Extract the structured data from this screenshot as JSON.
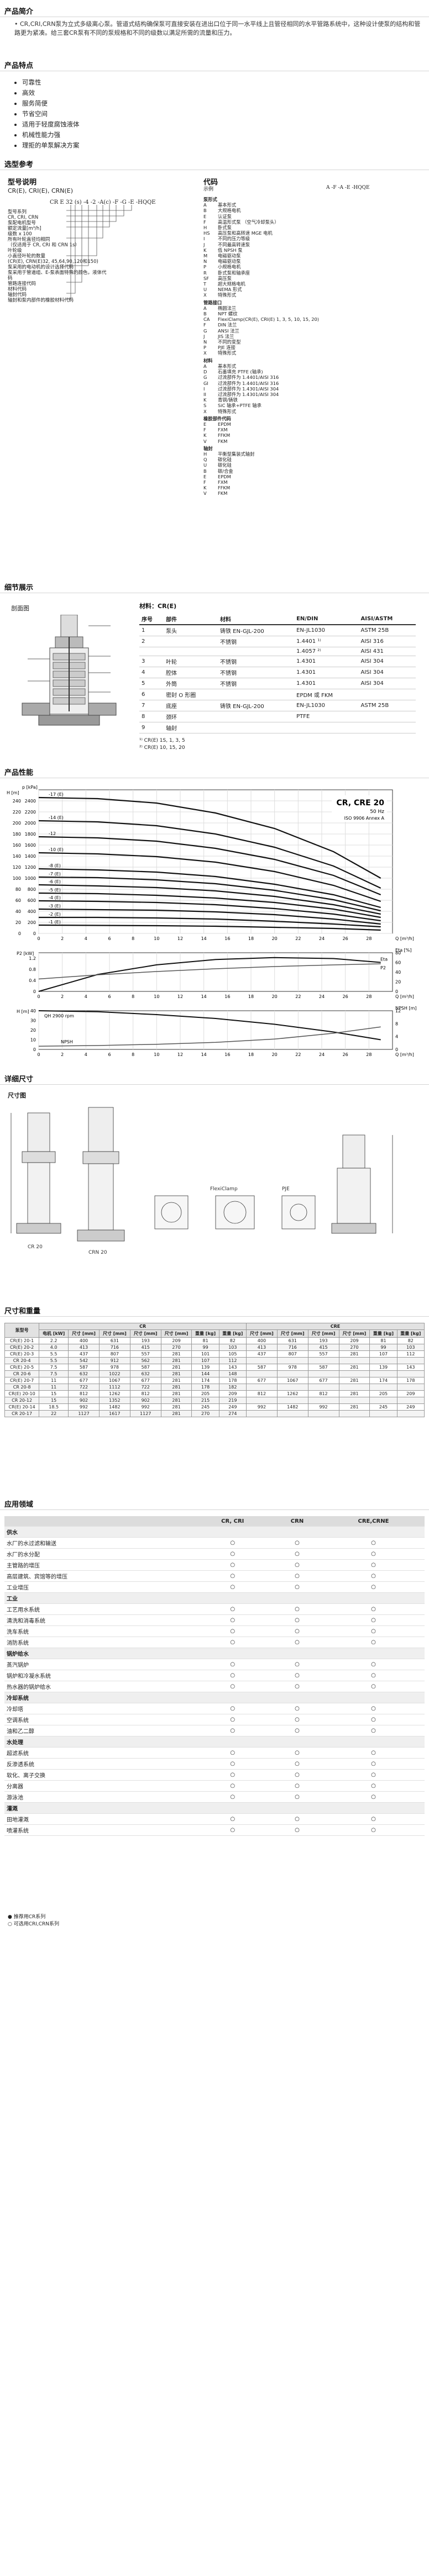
{
  "sections": {
    "product_intro": "产品简介",
    "features": "产品特点",
    "selection": "选型参考",
    "details": "细节展示",
    "performance": "产品性能",
    "dimensions": "详细尺寸",
    "size_label": "尺寸图",
    "size_weight": "尺寸和重量",
    "applications": "应用领域"
  },
  "intro_text": "• CR,CRI,CRN泵为立式多级离心泵。管道式结构确保泵可直接安装在进出口位于同一水平线上且管径相同的水平管路系统中，这种设计使泵的结构和管路更为紧凑。给三套CR泵有不同的泵规格和不同的级数以满足所需的流量和压力。",
  "features": [
    "可靠性",
    "高效",
    "服务简便",
    "节省空间",
    "适用于轻度腐蚀液体",
    "机械性能力强",
    "理拒的单泵解决方案"
  ],
  "model": {
    "heading": "型号说明",
    "sub": "CR(E), CRI(E), CRN(E)",
    "code": "CR E 32 (s) -4 -2 -A(c) -F -G -E -HQQE",
    "left_labels": [
      "型号系列",
      "CR, CRI, CRN",
      "泵配电机型号",
      "额定流量[m³/h]",
      "级数 x 100",
      "所有叶轮直径均相同",
      "（仅适用于 CR, CRI 和 CRN 1s）",
      "叶轮级",
      "小直径叶轮的数量",
      "(CR(E), CRN(E)32, 45,64,90,120和150)",
      "泵采用的电动机的设计选择代码",
      "泵采用于管道组、E-泵表面特殊的颜色，液体代码",
      "管路连接代码",
      "材料代码",
      "轴封代码",
      "轴封和泵内部件的橡胶材料代码"
    ]
  },
  "codes": {
    "heading": "代码",
    "example_label": "示例",
    "example_code": "A -F -A -E -HQQE",
    "groups": [
      {
        "title": "泵形式",
        "rows": [
          [
            "A",
            "基本形式"
          ],
          [
            "B",
            "大规格电机"
          ],
          [
            "E",
            "认证泵"
          ],
          [
            "F",
            "高温形式泵 （空气冷却泵头）"
          ],
          [
            "H",
            "卧式泵"
          ],
          [
            "HS",
            "高压泵和高转速 MGE 电机"
          ],
          [
            "I",
            "不同的压力等级"
          ],
          [
            "J",
            "不同最高转速泵"
          ],
          [
            "K",
            "低 NPSH 泵"
          ],
          [
            "M",
            "电磁驱动泵"
          ],
          [
            "N",
            "电磁驱动泵"
          ],
          [
            "P",
            "小规格电机"
          ],
          [
            "R",
            "卧式泵和轴承座"
          ],
          [
            "SF",
            "高压泵"
          ],
          [
            "T",
            "超大规格电机"
          ],
          [
            "U",
            "NEMA 形式"
          ],
          [
            "X",
            "特殊形式"
          ]
        ]
      },
      {
        "title": "管路接口",
        "rows": [
          [
            "A",
            "椭圆法兰"
          ],
          [
            "B",
            "NPT 螺纹"
          ],
          [
            "CA",
            "FlexiClamp(CR(E), CRI(E) 1, 3, 5, 10, 15, 20)"
          ],
          [
            "F",
            "DIN 法兰"
          ],
          [
            "G",
            "ANSI 法兰"
          ],
          [
            "J",
            "JIS 法兰"
          ],
          [
            "N",
            "不同的变型"
          ],
          [
            "P",
            "PJE 连接"
          ],
          [
            "X",
            "特殊形式"
          ]
        ]
      },
      {
        "title": "材料",
        "rows": [
          [
            "A",
            "基本形式"
          ],
          [
            "D",
            "石墨填充 PTFE (轴承)"
          ],
          [
            "G",
            "过流部件为 1.4401/AISI 316"
          ],
          [
            "GI",
            "过流部件为 1.4401/AISI 316"
          ],
          [
            "I",
            "过流部件为 1.4301/AISI 304"
          ],
          [
            "II",
            "过流部件为 1.4301/AISI 304"
          ],
          [
            "K",
            "青铜/铸铁"
          ],
          [
            "S",
            "SiC 轴承+PTFE 轴承"
          ],
          [
            "X",
            "特殊形式"
          ]
        ]
      },
      {
        "title": "橡胶部件代码",
        "rows": [
          [
            "E",
            "EPDM"
          ],
          [
            "F",
            "FXM"
          ],
          [
            "K",
            "FFKM"
          ],
          [
            "V",
            "FKM"
          ]
        ]
      },
      {
        "title": "轴封",
        "rows": [
          [
            "H",
            "平衡型集装式轴封"
          ],
          [
            "Q",
            "碳化硅"
          ],
          [
            "U",
            "碳化硅"
          ],
          [
            "B",
            "碳/合金"
          ],
          [
            "E",
            "EPDM"
          ],
          [
            "F",
            "FXM"
          ],
          [
            "K",
            "FFKM"
          ],
          [
            "V",
            "FKM"
          ]
        ]
      }
    ]
  },
  "details": {
    "section_label": "剖面图",
    "materials_title": "材料：CR(E)",
    "headers": [
      "序号",
      "部件",
      "材料",
      "EN/DIN",
      "AISI/ASTM"
    ],
    "rows": [
      [
        "1",
        "泵头",
        "铸铁 EN-GJL-200",
        "EN-JL1030",
        "ASTM 25B"
      ],
      [
        "2",
        "",
        "不锈钢",
        "1.4401 ¹⁾",
        "AISI 316"
      ],
      [
        "",
        "",
        "",
        "1.4057 ²⁾",
        "AISI 431"
      ],
      [
        "3",
        "叶轮",
        "不锈钢",
        "1.4301",
        "AISI 304"
      ],
      [
        "4",
        "腔体",
        "不锈钢",
        "1.4301",
        "AISI 304"
      ],
      [
        "5",
        "外筒",
        "不锈钢",
        "1.4301",
        "AISI 304"
      ],
      [
        "6",
        "密封 O 形圈",
        "",
        "EPDM 或 FKM",
        ""
      ],
      [
        "7",
        "底座",
        "铸铁 EN-GJL-200",
        "EN-JL1030",
        "ASTM 25B"
      ],
      [
        "8",
        "颈环",
        "",
        "PTFE",
        ""
      ],
      [
        "9",
        "轴封",
        "",
        "",
        ""
      ]
    ],
    "notes": [
      "¹⁾ CR(E) 1S, 1, 3, 5",
      "²⁾ CR(E) 10, 15, 20"
    ]
  },
  "chart_data": [
    {
      "type": "line",
      "title": "CR, CRE 20",
      "subtitle": "50 Hz",
      "note": "ISO 9906 Annex A",
      "xlabel": "Q [m³/h]",
      "ylabel": "p [kPa]",
      "ylabel2": "H [m]",
      "xlim": [
        0,
        30
      ],
      "ylim": [
        0,
        2600
      ],
      "series": [
        {
          "name": "-17 (E)",
          "values": [
            2460,
            2440,
            2360,
            2180,
            1900,
            1480,
            1000
          ]
        },
        {
          "name": "-14 (E)",
          "values": [
            2040,
            2020,
            1950,
            1800,
            1560,
            1220,
            820
          ]
        },
        {
          "name": "-12",
          "values": [
            1750,
            1730,
            1670,
            1540,
            1340,
            1050,
            700
          ]
        },
        {
          "name": "-10 (E)",
          "values": [
            1460,
            1440,
            1390,
            1290,
            1120,
            870,
            580
          ]
        },
        {
          "name": "-8 (E)",
          "values": [
            1170,
            1150,
            1110,
            1030,
            890,
            700,
            470
          ]
        },
        {
          "name": "-7 (E)",
          "values": [
            1020,
            1010,
            970,
            900,
            780,
            610,
            410
          ]
        },
        {
          "name": "-6 (E)",
          "values": [
            880,
            860,
            830,
            770,
            670,
            520,
            350
          ]
        },
        {
          "name": "-5 (E)",
          "values": [
            730,
            720,
            690,
            640,
            560,
            440,
            290
          ]
        },
        {
          "name": "-4 (E)",
          "values": [
            590,
            580,
            560,
            520,
            450,
            350,
            230
          ]
        },
        {
          "name": "-3 (E)",
          "values": [
            440,
            430,
            420,
            390,
            340,
            260,
            170
          ]
        },
        {
          "name": "-2 (E)",
          "values": [
            290,
            290,
            280,
            260,
            220,
            170,
            120
          ]
        },
        {
          "name": "-1 (E)",
          "values": [
            150,
            145,
            140,
            130,
            110,
            90,
            60
          ]
        }
      ],
      "x": [
        0,
        5,
        10,
        15,
        20,
        25,
        29
      ],
      "x_ticks": [
        0,
        2,
        4,
        6,
        8,
        10,
        12,
        14,
        16,
        18,
        20,
        22,
        24,
        26,
        28
      ],
      "y_ticks": [
        0,
        200,
        400,
        600,
        800,
        1000,
        1200,
        1400,
        1600,
        1800,
        2000,
        2200,
        2400
      ],
      "y2_ticks": [
        0,
        20,
        40,
        60,
        80,
        100,
        120,
        140,
        160,
        180,
        200,
        220,
        240
      ]
    },
    {
      "type": "line",
      "xlabel": "Q [m³/h]",
      "ylabel": "P2 [kW]",
      "ylabel2": "Eta [%]",
      "series": [
        {
          "name": "Eta",
          "values": [
            0,
            35,
            55,
            66,
            70,
            68,
            60
          ]
        },
        {
          "name": "P2",
          "values": [
            0.45,
            0.6,
            0.72,
            0.82,
            0.9,
            0.96,
            1.0
          ]
        }
      ],
      "x": [
        0,
        5,
        10,
        15,
        20,
        25,
        29
      ],
      "y_ticks": [
        0,
        0.4,
        0.8,
        1.2
      ],
      "y2_ticks": [
        0,
        20,
        40,
        60,
        80
      ]
    },
    {
      "type": "line",
      "xlabel": "Q [m³/h]",
      "ylabel": "H [m]",
      "ylabel2": "NPSH [m]",
      "annotation": "QH 2900 rpm",
      "series": [
        {
          "name": "QH 2900 rpm",
          "values": [
            40,
            39,
            36,
            32,
            26,
            18,
            10
          ]
        },
        {
          "name": "NPSH",
          "values": [
            1,
            1.2,
            1.6,
            2.2,
            3.2,
            5,
            7
          ]
        }
      ],
      "x": [
        0,
        5,
        10,
        15,
        20,
        25,
        29
      ],
      "y_ticks": [
        0,
        10,
        20,
        30,
        40
      ],
      "y2_ticks": [
        0,
        4,
        8,
        12
      ]
    }
  ],
  "dimensions": {
    "views": [
      "CR 20",
      "CRN 20",
      "FlexiClamp",
      "PJE"
    ]
  },
  "size_table": {
    "group_headers": [
      "CR",
      "CRN",
      "CRE",
      "CRNE"
    ],
    "sub_headers": [
      "泵型号",
      "电机 [kW]",
      "尺寸 [mm]",
      "重量 [kg]",
      "尺寸 [mm]",
      "重量 [kg]"
    ],
    "rows": [
      [
        "CR(E) 20-1",
        "2.2",
        "400",
        "631",
        "193",
        "209",
        "81",
        "82",
        "400",
        "631",
        "193",
        "209",
        "81",
        "82"
      ],
      [
        "CR(E) 20-2",
        "4.0",
        "413",
        "716",
        "415",
        "270",
        "99",
        "103",
        "413",
        "716",
        "415",
        "270",
        "99",
        "103"
      ],
      [
        "CR(E) 20-3",
        "5.5",
        "437",
        "807",
        "557",
        "281",
        "101",
        "105",
        "437",
        "807",
        "557",
        "281",
        "107",
        "112"
      ],
      [
        "CR 20-4",
        "5.5",
        "542",
        "912",
        "562",
        "281",
        "107",
        "112",
        "",
        "",
        "",
        "",
        "",
        ""
      ],
      [
        "CR(E) 20-5",
        "7.5",
        "587",
        "978",
        "587",
        "281",
        "139",
        "143",
        "587",
        "978",
        "587",
        "281",
        "139",
        "143"
      ],
      [
        "CR 20-6",
        "7.5",
        "632",
        "1022",
        "632",
        "281",
        "144",
        "148",
        "",
        "",
        "",
        "",
        "",
        ""
      ],
      [
        "CR(E) 20-7",
        "11",
        "677",
        "1067",
        "677",
        "281",
        "174",
        "178",
        "677",
        "1067",
        "677",
        "281",
        "174",
        "178"
      ],
      [
        "CR 20-8",
        "11",
        "722",
        "1112",
        "722",
        "281",
        "178",
        "182",
        "",
        "",
        "",
        "",
        "",
        ""
      ],
      [
        "CR(E) 20-10",
        "15",
        "812",
        "1262",
        "812",
        "281",
        "205",
        "209",
        "812",
        "1262",
        "812",
        "281",
        "205",
        "209"
      ],
      [
        "CR 20-12",
        "15",
        "902",
        "1352",
        "902",
        "281",
        "215",
        "219",
        "",
        "",
        "",
        "",
        "",
        ""
      ],
      [
        "CR(E) 20-14",
        "18.5",
        "992",
        "1482",
        "992",
        "281",
        "245",
        "249",
        "992",
        "1482",
        "992",
        "281",
        "245",
        "249"
      ],
      [
        "CR 20-17",
        "22",
        "1127",
        "1617",
        "1127",
        "281",
        "270",
        "274",
        "",
        "",
        "",
        "",
        "",
        ""
      ]
    ]
  },
  "applications": {
    "headers": [
      "",
      "CR, CRI",
      "CRN",
      "CRE,CRNE"
    ],
    "groups": [
      {
        "title": "供水",
        "rows": [
          [
            "水厂的水过滤和输送",
            "○",
            "○",
            "○"
          ],
          [
            "水厂的水分配",
            "○",
            "○",
            "○"
          ],
          [
            "主管路的增压",
            "○",
            "○",
            "○"
          ],
          [
            "高层建筑、宾馆等的增压",
            "○",
            "○",
            "○"
          ],
          [
            "工业增压",
            "○",
            "○",
            "○"
          ]
        ]
      },
      {
        "title": "工业",
        "rows": [
          [
            "工艺用水系统",
            "○",
            "○",
            "○"
          ],
          [
            "清洗和消毒系统",
            "○",
            "○",
            "○"
          ],
          [
            "洗车系统",
            "○",
            "○",
            "○"
          ],
          [
            "消防系统",
            "○",
            "○",
            "○"
          ]
        ]
      },
      {
        "title": "锅炉给水",
        "rows": [
          [
            "蒸汽锅炉",
            "○",
            "○",
            "○"
          ],
          [
            "锅炉和冷凝水系统",
            "○",
            "○",
            "○"
          ],
          [
            "热水器的锅炉给水",
            "○",
            "○",
            "○"
          ]
        ]
      },
      {
        "title": "冷却系统",
        "rows": [
          [
            "冷却塔",
            "○",
            "○",
            "○"
          ],
          [
            "空调系统",
            "○",
            "○",
            "○"
          ],
          [
            "油和乙二醇",
            "○",
            "○",
            "○"
          ]
        ]
      },
      {
        "title": "水处理",
        "rows": [
          [
            "超滤系统",
            "○",
            "○",
            "○"
          ],
          [
            "反渗透系统",
            "○",
            "○",
            "○"
          ],
          [
            "软化、离子交换",
            "○",
            "○",
            "○"
          ],
          [
            "分离器",
            "○",
            "○",
            "○"
          ],
          [
            "游泳池",
            "○",
            "○",
            "○"
          ]
        ]
      },
      {
        "title": "灌溉",
        "rows": [
          [
            "田地灌溉",
            "○",
            "○",
            "○"
          ],
          [
            "喷灌系统",
            "○",
            "○",
            "○"
          ]
        ]
      }
    ],
    "legend": [
      "● 推荐用CR系列",
      "○ 可选用CRI,CRN系列"
    ]
  }
}
